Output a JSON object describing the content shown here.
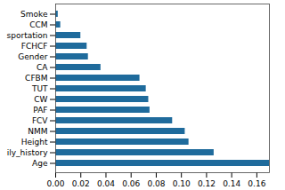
{
  "chart_data": {
    "type": "bar",
    "orientation": "horizontal",
    "categories": [
      "Smoke",
      "CCM",
      "sportation",
      "FCHCF",
      "Gender",
      "CA",
      "CFBM",
      "TUT",
      "CW",
      "PAF",
      "FCV",
      "NMM",
      "Height",
      "ily_history",
      "Age"
    ],
    "values": [
      0.002,
      0.004,
      0.02,
      0.025,
      0.026,
      0.036,
      0.067,
      0.072,
      0.074,
      0.075,
      0.093,
      0.103,
      0.106,
      0.126,
      0.17
    ],
    "color": "#1f6b9c",
    "xlim": [
      0,
      0.17
    ],
    "xticks": [
      {
        "value": 0,
        "label": "0.00"
      },
      {
        "value": 0.02,
        "label": "0.02"
      },
      {
        "value": 0.04,
        "label": "0.04"
      },
      {
        "value": 0.06,
        "label": "0.06"
      },
      {
        "value": 0.08,
        "label": "0.08"
      },
      {
        "value": 0.1,
        "label": "0.10"
      },
      {
        "value": 0.12,
        "label": "0.12"
      },
      {
        "value": 0.14,
        "label": "0.14"
      },
      {
        "value": 0.16,
        "label": "0.16"
      }
    ],
    "grid": false
  }
}
